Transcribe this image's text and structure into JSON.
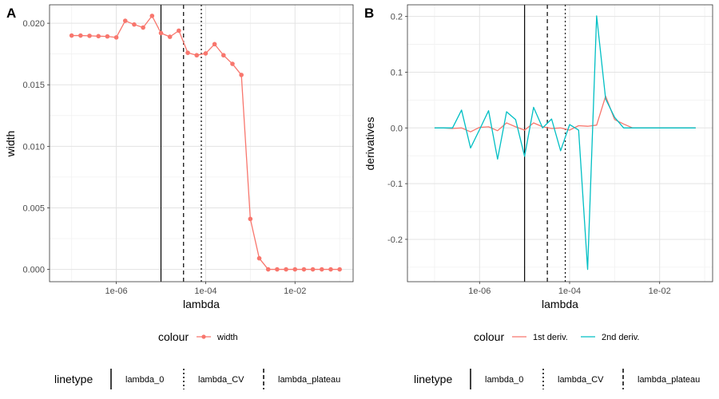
{
  "chart_data": [
    {
      "panel": "A",
      "type": "line",
      "xscale": "log10",
      "xlabel": "lambda",
      "ylabel": "width",
      "xlim": [
        3.2e-08,
        0.2
      ],
      "ylim": [
        -0.001,
        0.0215
      ],
      "x_ticks": [
        {
          "value": 1e-06,
          "label": "1e-06"
        },
        {
          "value": 0.0001,
          "label": "1e-04"
        },
        {
          "value": 0.01,
          "label": "1e-02"
        }
      ],
      "y_ticks": [
        {
          "value": 0,
          "label": "0.000"
        },
        {
          "value": 0.005,
          "label": "0.005"
        },
        {
          "value": 0.01,
          "label": "0.010"
        },
        {
          "value": 0.015,
          "label": "0.015"
        },
        {
          "value": 0.02,
          "label": "0.020"
        }
      ],
      "series": [
        {
          "name": "width",
          "color": "#F8766D",
          "points": true,
          "x": [
            1e-07,
            1.585e-07,
            2.512e-07,
            3.981e-07,
            6.31e-07,
            1e-06,
            1.585e-06,
            2.512e-06,
            3.981e-06,
            6.31e-06,
            1e-05,
            1.585e-05,
            2.512e-05,
            3.981e-05,
            6.31e-05,
            0.0001,
            0.0001585,
            0.0002512,
            0.0003981,
            0.000631,
            0.001,
            0.001585,
            0.002512,
            0.003981,
            0.00631,
            0.01,
            0.01585,
            0.02512,
            0.03981,
            0.0631,
            0.1
          ],
          "y": [
            0.019,
            0.019,
            0.01898,
            0.01895,
            0.01893,
            0.01885,
            0.0202,
            0.0199,
            0.01965,
            0.0206,
            0.0192,
            0.0189,
            0.0194,
            0.0176,
            0.0174,
            0.01755,
            0.0183,
            0.0174,
            0.0167,
            0.0158,
            0.0041,
            0.0009,
            0.0,
            0.0,
            0.0,
            0.0,
            0.0,
            0.0,
            0.0,
            0.0,
            0.0
          ]
        }
      ],
      "vlines": [
        {
          "name": "lambda_0",
          "x": 1e-05,
          "dash": "solid"
        },
        {
          "name": "lambda_plateau",
          "x": 3.2e-05,
          "dash": "dashed"
        },
        {
          "name": "lambda_CV",
          "x": 8e-05,
          "dash": "dotted"
        }
      ]
    },
    {
      "panel": "B",
      "type": "line",
      "xscale": "log10",
      "xlabel": "lambda",
      "ylabel": "derivatives",
      "xlim": [
        2.5e-08,
        0.15
      ],
      "ylim": [
        -0.276,
        0.221
      ],
      "x_ticks": [
        {
          "value": 1e-06,
          "label": "1e-06"
        },
        {
          "value": 0.0001,
          "label": "1e-04"
        },
        {
          "value": 0.01,
          "label": "1e-02"
        }
      ],
      "y_ticks": [
        {
          "value": -0.2,
          "label": "-0.2"
        },
        {
          "value": -0.1,
          "label": "-0.1"
        },
        {
          "value": 0.0,
          "label": "0.0"
        },
        {
          "value": 0.1,
          "label": "0.1"
        },
        {
          "value": 0.2,
          "label": "0.2"
        }
      ],
      "series": [
        {
          "name": "1st deriv.",
          "color": "#F8766D",
          "points": false,
          "x": [
            1e-07,
            1.585e-07,
            2.512e-07,
            3.981e-07,
            6.31e-07,
            1e-06,
            1.585e-06,
            2.512e-06,
            3.981e-06,
            6.31e-06,
            1e-05,
            1.585e-05,
            2.512e-05,
            3.981e-05,
            6.31e-05,
            0.0001,
            0.0001585,
            0.0002512,
            0.0003981,
            0.000631,
            0.001,
            0.001585,
            0.002512,
            0.003981,
            0.00631,
            0.01,
            0.01585,
            0.02512,
            0.03981,
            0.0631
          ],
          "y": [
            0.0,
            0.0,
            -0.001,
            0.0,
            -0.007,
            0.001,
            0.002,
            -0.005,
            0.009,
            0.002,
            -0.004,
            0.009,
            0.002,
            -0.001,
            0.0,
            -0.004,
            0.004,
            0.003,
            0.005,
            0.057,
            0.015,
            0.007,
            0.0,
            0.0,
            0.0,
            0.0,
            0.0,
            0.0,
            0.0,
            0.0
          ]
        },
        {
          "name": "2nd deriv.",
          "color": "#00BFC4",
          "points": false,
          "x": [
            1e-07,
            1.585e-07,
            2.512e-07,
            3.981e-07,
            6.31e-07,
            1e-06,
            1.585e-06,
            2.512e-06,
            3.981e-06,
            6.31e-06,
            1e-05,
            1.585e-05,
            2.512e-05,
            3.981e-05,
            6.31e-05,
            0.0001,
            0.0001585,
            0.0002512,
            0.0003981,
            0.000631,
            0.001,
            0.001585,
            0.002512,
            0.003981,
            0.00631,
            0.01,
            0.01585,
            0.02512,
            0.03981,
            0.0631
          ],
          "y": [
            0.0,
            0.0,
            0.0,
            0.032,
            -0.036,
            -0.003,
            0.031,
            -0.056,
            0.029,
            0.015,
            -0.051,
            0.037,
            0.0,
            0.016,
            -0.041,
            0.006,
            -0.004,
            -0.254,
            0.201,
            0.052,
            0.019,
            0.0,
            0.0,
            0.0,
            0.0,
            0.0,
            0.0,
            0.0,
            0.0,
            0.0
          ]
        }
      ],
      "vlines": [
        {
          "name": "lambda_0",
          "x": 1e-05,
          "dash": "solid"
        },
        {
          "name": "lambda_plateau",
          "x": 3.2e-05,
          "dash": "dashed"
        },
        {
          "name": "lambda_CV",
          "x": 8e-05,
          "dash": "dotted"
        }
      ]
    }
  ],
  "legends": {
    "A": {
      "colour_title": "colour",
      "colour_items": [
        {
          "label": "width",
          "color": "#F8766D",
          "point": true
        }
      ],
      "linetype_title": "linetype",
      "linetype_items": [
        {
          "label": "lambda_0",
          "dash": "solid"
        },
        {
          "label": "lambda_CV",
          "dash": "dotted"
        },
        {
          "label": "lambda_plateau",
          "dash": "dashed"
        }
      ]
    },
    "B": {
      "colour_title": "colour",
      "colour_items": [
        {
          "label": "1st deriv.",
          "color": "#F8766D",
          "point": false
        },
        {
          "label": "2nd deriv.",
          "color": "#00BFC4",
          "point": false
        }
      ],
      "linetype_title": "linetype",
      "linetype_items": [
        {
          "label": "lambda_0",
          "dash": "solid"
        },
        {
          "label": "lambda_CV",
          "dash": "dotted"
        },
        {
          "label": "lambda_plateau",
          "dash": "dashed"
        }
      ]
    }
  },
  "style": {
    "grid_major": "#e3e3e3",
    "grid_minor": "#f1f1f1",
    "panel_border": "#333333"
  }
}
